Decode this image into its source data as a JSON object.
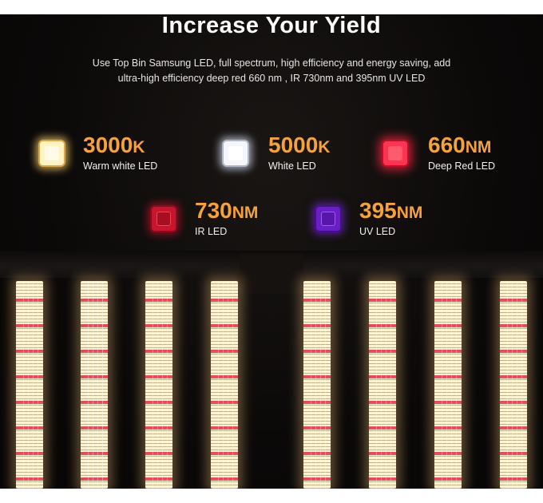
{
  "title": "Increase Your Yield",
  "subtitle": {
    "line1": "Use Top Bin Samsung LED, full spectrum, high efficiency and energy saving, add",
    "line2": "ultra-high efficiency deep red 660 nm , IR 730nm and 395nm UV LED"
  },
  "leds": [
    {
      "value": "3000",
      "unit": "K",
      "name": "Warm white LED",
      "color": "#fff3c2"
    },
    {
      "value": "5000",
      "unit": "K",
      "name": "White LED",
      "color": "#f4f6fb"
    },
    {
      "value": "660",
      "unit": "NM",
      "name": "Deep Red LED",
      "color": "#ff3350"
    },
    {
      "value": "730",
      "unit": "NM",
      "name": "IR LED",
      "color": "#c8142c"
    },
    {
      "value": "395",
      "unit": "NM",
      "name": "UV LED",
      "color": "#6a1fc4"
    }
  ],
  "colors": {
    "accent": "#f5a23c",
    "background": "#0b0908"
  }
}
